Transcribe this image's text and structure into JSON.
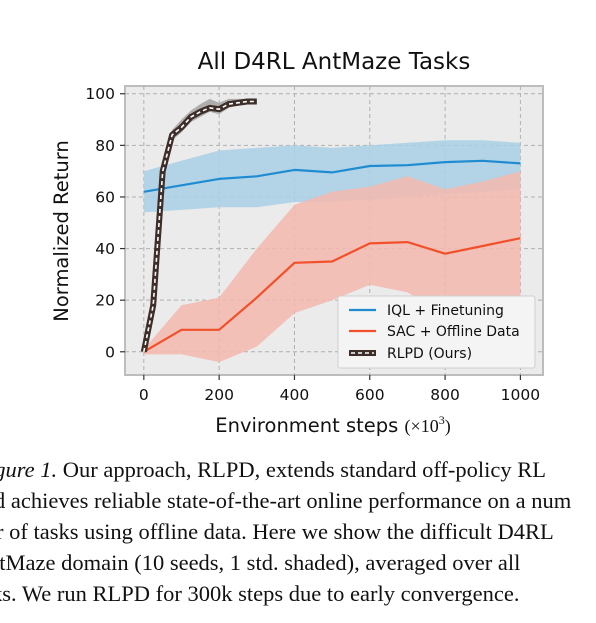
{
  "chart_data": {
    "type": "line",
    "title": "All D4RL AntMaze Tasks",
    "xlabel": "Environment steps",
    "xlabel_unit": "(×10",
    "xlabel_unit_exp": "3",
    "xlabel_unit_close": ")",
    "ylabel": "Normalized Return",
    "xlim": [
      -50,
      1060
    ],
    "ylim": [
      -9,
      103
    ],
    "xticks": [
      0,
      200,
      400,
      600,
      800,
      1000
    ],
    "yticks": [
      0,
      20,
      40,
      60,
      80,
      100
    ],
    "xtick_labels": [
      "0",
      "200",
      "400",
      "600",
      "800",
      "1000"
    ],
    "ytick_labels": [
      "0",
      "20",
      "40",
      "60",
      "80",
      "100"
    ],
    "grid": true,
    "legend_position": "lower-right",
    "series": [
      {
        "name": "IQL + Finetuning",
        "color": "#1f8bd1",
        "band_color": "#a9d0e6",
        "style": "solid",
        "x": [
          0,
          100,
          200,
          300,
          400,
          500,
          600,
          700,
          800,
          900,
          1000
        ],
        "y": [
          62,
          64.5,
          67,
          68,
          70.5,
          69.5,
          72,
          72.3,
          73.5,
          74,
          73
        ],
        "lower": [
          54,
          55,
          56,
          56,
          58,
          58,
          59,
          60,
          61,
          62,
          63
        ],
        "upper": [
          70,
          74,
          78,
          79,
          80,
          79,
          80,
          81,
          82,
          82,
          81
        ]
      },
      {
        "name": "SAC + Offline Data",
        "color": "#f2502a",
        "band_color": "#f3b9ae",
        "style": "solid",
        "x": [
          0,
          100,
          200,
          300,
          400,
          500,
          600,
          700,
          800,
          900,
          1000
        ],
        "y": [
          0,
          8.5,
          8.5,
          21,
          34.5,
          35,
          42,
          42.5,
          38,
          41,
          44
        ],
        "lower": [
          -1,
          -1,
          -4,
          2,
          15,
          20,
          26,
          23,
          15,
          18,
          18
        ],
        "upper": [
          1,
          18,
          21,
          40,
          57,
          62,
          64,
          68,
          63,
          66,
          70
        ]
      },
      {
        "name": "RLPD (Ours)",
        "color": "#3d2e29",
        "dash_color": "#ffffff",
        "band_color": "#a6a3a1",
        "style": "dashed-thick",
        "x": [
          0,
          25,
          50,
          75,
          100,
          125,
          150,
          175,
          200,
          225,
          250,
          275,
          300
        ],
        "y": [
          0,
          18,
          70,
          84,
          87,
          91,
          93,
          94.5,
          94,
          96,
          96.5,
          97,
          97
        ],
        "lower": [
          0,
          16,
          66,
          82,
          85,
          89,
          91,
          93,
          92,
          94.5,
          95.5,
          96,
          96
        ],
        "upper": [
          0,
          20,
          74,
          86,
          90,
          93.5,
          96,
          98,
          96.5,
          98,
          98,
          98,
          98
        ]
      }
    ]
  },
  "caption": {
    "figure_label": "igure 1.",
    "line1": " Our approach, RLPD, extends standard off-policy RL",
    "line2": "d achieves reliable state-of-the-art online performance on a num",
    "line3": "r of tasks using offline data. Here we show the difficult D4RL",
    "line4": "ntMaze domain (10 seeds, 1 std.  shaded), averaged over all",
    "line5": "ks. We run RLPD for 300k steps due to early convergence."
  }
}
